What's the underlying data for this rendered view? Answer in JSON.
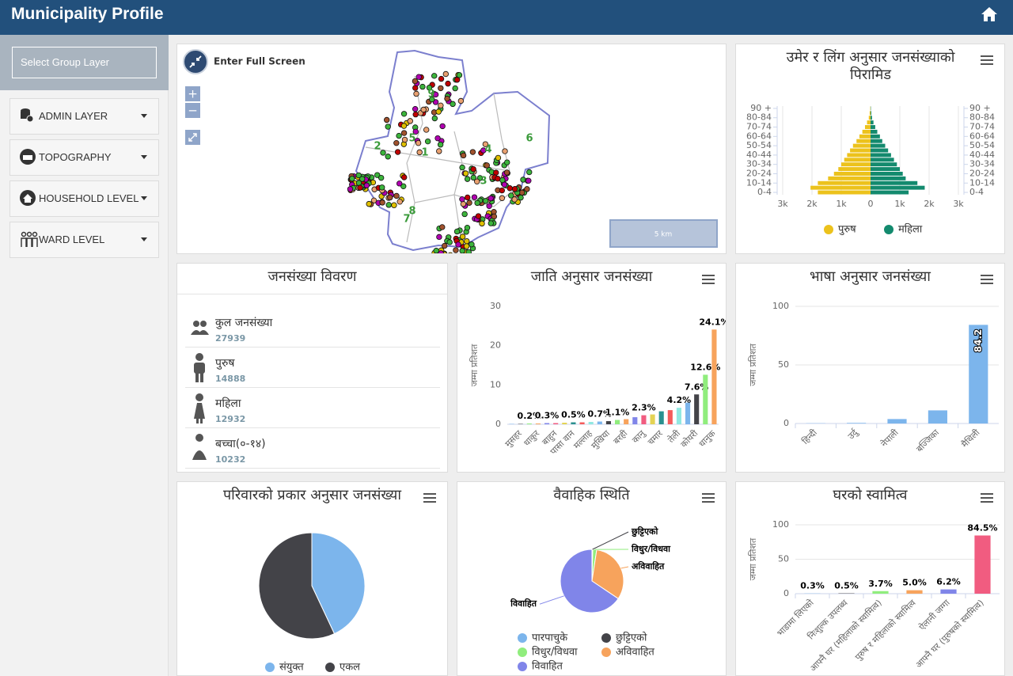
{
  "header": {
    "title": "Municipality Profile"
  },
  "sidebar": {
    "select_label": "Select Group Layer",
    "menu": [
      "ADMIN LAYER",
      "TOPOGRAPHY",
      "HOUSEHOLD LEVEL",
      "WARD LEVEL"
    ]
  },
  "map": {
    "fullscreen_label": "Enter Full Screen",
    "zoom_in": "+",
    "zoom_out": "−",
    "scale_label": "5 km",
    "ward_labels": [
      "1",
      "2",
      "3",
      "4",
      "5",
      "6",
      "7",
      "8",
      "9"
    ]
  },
  "population_summary": {
    "title": "जनसंख्या विवरण",
    "items": [
      {
        "label": "कुल जनसंख्या",
        "value": 27939
      },
      {
        "label": "पुरुष",
        "value": 14888
      },
      {
        "label": "महिला",
        "value": 12932
      },
      {
        "label": "बच्चा(०-१४)",
        "value": 10232
      }
    ]
  },
  "chart_data": [
    {
      "type": "pyramid",
      "title": "उमेर र लिंग अनुसार जनसंख्याको पिरामिड",
      "categories": [
        "0-4",
        null,
        "10-14",
        null,
        "20-24",
        null,
        "30-34",
        null,
        "40-44",
        null,
        "50-54",
        null,
        "60-64",
        null,
        "70-74",
        null,
        "80-84",
        null,
        "90 +"
      ],
      "series": [
        {
          "name": "पुरुष",
          "color": "#ecc21c",
          "values": [
            1800,
            2050,
            1800,
            1450,
            1250,
            1100,
            1000,
            900,
            800,
            700,
            600,
            480,
            380,
            280,
            190,
            120,
            60,
            30,
            10
          ]
        },
        {
          "name": "महिला",
          "color": "#138a6e",
          "values": [
            1300,
            1850,
            1600,
            1200,
            1100,
            1000,
            900,
            800,
            700,
            600,
            500,
            400,
            320,
            230,
            160,
            100,
            50,
            25,
            10
          ]
        }
      ],
      "xlim": [
        0,
        3000
      ],
      "xticks": [
        0,
        {
          "value": 1000,
          "label": "1k"
        },
        {
          "value": 2000,
          "label": "2k"
        },
        {
          "value": 3000,
          "label": "3k"
        }
      ],
      "grid": true,
      "legend": "bottom"
    },
    {
      "type": "bar",
      "title": "जाति अनुसार जनसंख्या",
      "y_label": "जम्मा प्रतिशत",
      "categories": [
        null,
        "मुसहर",
        null,
        "धाकुर",
        null,
        "बाहुन",
        null,
        "पासा वान",
        null,
        "मल्लाह",
        null,
        "मुखिया",
        null,
        "बरही",
        null,
        "कानु",
        null,
        "चमार",
        null,
        "तेली",
        null,
        "कोयरी",
        null,
        "धानुक"
      ],
      "values": [
        0.1,
        0.1,
        0.2,
        0.2,
        0.3,
        0.3,
        0.4,
        0.5,
        0.5,
        0.6,
        0.7,
        0.8,
        1.1,
        1.3,
        1.8,
        2.3,
        2.5,
        3.3,
        3.6,
        4.2,
        5.5,
        7.6,
        12.6,
        24.1
      ],
      "value_labels": [
        null,
        null,
        "0.2%",
        null,
        "0.3%",
        null,
        null,
        "0.5%",
        null,
        null,
        "0.7%",
        null,
        "1.1%",
        null,
        null,
        "2.3%",
        null,
        null,
        null,
        "4.2%",
        null,
        "7.6%",
        "12.6%",
        "24.1%"
      ],
      "colors": [
        "#7cb5ec",
        "#434348",
        "#90ed7d",
        "#f7a35c",
        "#8085e9",
        "#f15c80",
        "#e4d354",
        "#2b908f",
        "#f45b5b",
        "#91e8e1"
      ],
      "ylim": [
        0,
        30
      ],
      "yticks": [
        0,
        10,
        20,
        30
      ],
      "grid": false
    },
    {
      "type": "bar",
      "title": "भाषा अनुसार जनसंख्या",
      "y_label": "जम्मा प्रतिशत",
      "categories": [
        "हिन्दी",
        "उर्दु",
        "नेपाली",
        "बज्जिका",
        "मैथिली"
      ],
      "values": [
        0.2,
        0.5,
        3.8,
        11.2,
        84.2
      ],
      "color": "#7cb5ec",
      "data_labels": "inside",
      "ylim": [
        0,
        100
      ],
      "yticks": [
        0,
        50,
        100
      ],
      "grid": true
    },
    {
      "type": "pie",
      "title": "परिवारको प्रकार अनुसार जनसंख्या",
      "categories": [
        "संयुक्त",
        "एकल"
      ],
      "values": [
        43,
        57
      ],
      "colors": [
        "#7cb5ec",
        "#434348"
      ],
      "data_labels": false,
      "legend": "bottom"
    },
    {
      "type": "pie",
      "title": "वैवाहिक स्थिति",
      "categories": [
        "पारपाचुके",
        "छुट्टिएको",
        "विधुर/विधवा",
        "अविवाहित",
        "विवाहित"
      ],
      "values": [
        0.1,
        0.3,
        2.0,
        32,
        65.6
      ],
      "colors": [
        "#7cb5ec",
        "#434348",
        "#90ed7d",
        "#f7a35c",
        "#8085e9"
      ],
      "data_labels": true,
      "legend": "bottom"
    },
    {
      "type": "bar",
      "title": "घरको स्वामित्व",
      "y_label": "जम्मा प्रतिशत",
      "categories": [
        "भाडामा लिएको",
        "निःशुल्क उपलब्ध",
        "आफ्नै घर (महिलाको स्वामित्व)",
        "पुरुष र महिलाको स्वामित्व",
        "ऐलानी जग्गा",
        "आफ्नै घर (पुरुषको स्वामित्व)"
      ],
      "values": [
        0.3,
        0.5,
        3.7,
        5.0,
        6.2,
        84.5
      ],
      "value_labels": [
        "0.3%",
        "0.5%",
        "3.7%",
        "5.0%",
        "6.2%",
        "84.5%"
      ],
      "colors": [
        "#7cb5ec",
        "#434348",
        "#90ed7d",
        "#f7a35c",
        "#8085e9",
        "#f15c80"
      ],
      "ylim": [
        0,
        100
      ],
      "yticks": [
        0,
        50,
        100
      ],
      "grid": true
    }
  ]
}
